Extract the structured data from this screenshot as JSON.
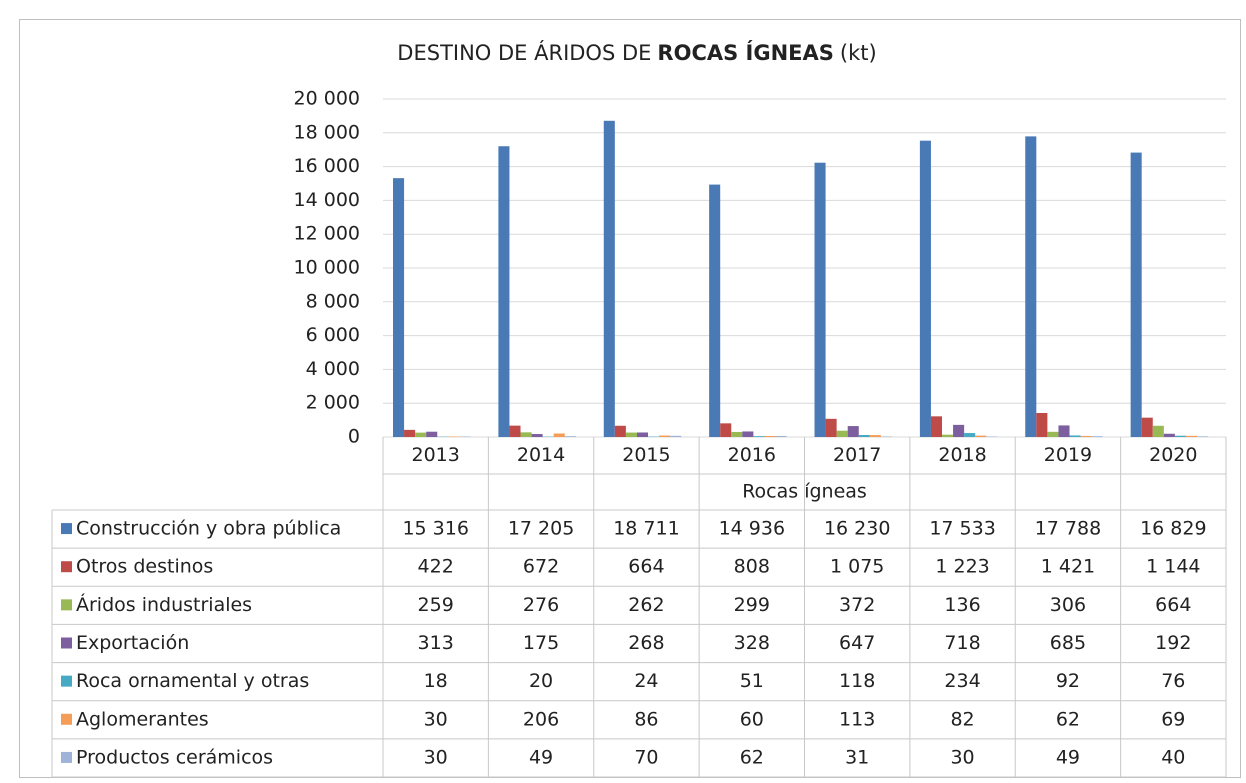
{
  "chart_data": {
    "type": "bar",
    "title": [
      "DESTINO DE ÁRIDOS DE",
      "ROCAS ÍGNEAS",
      "(kt)"
    ],
    "categories": [
      "2013",
      "2014",
      "2015",
      "2016",
      "2017",
      "2018",
      "2019",
      "2020"
    ],
    "group_label": "Rocas ígneas",
    "ylim": [
      0,
      20000
    ],
    "yticks": [
      0,
      {
        "value": 2000,
        "label": "2 000"
      },
      {
        "value": 4000,
        "label": "4 000"
      },
      {
        "value": 6000,
        "label": "6 000"
      },
      {
        "value": 8000,
        "label": "8 000"
      },
      {
        "value": 10000,
        "label": "10 000"
      },
      {
        "value": 12000,
        "label": "12 000"
      },
      {
        "value": 14000,
        "label": "14 000"
      },
      {
        "value": 16000,
        "label": "16 000"
      },
      {
        "value": 18000,
        "label": "18 000"
      },
      {
        "value": 20000,
        "label": "20 000"
      }
    ],
    "grid": true,
    "series": [
      {
        "name": "Construcción y obra pública",
        "color": "#4a7ab5",
        "values": [
          15316,
          17205,
          18711,
          14936,
          16230,
          17533,
          17788,
          16829
        ],
        "value_labels": [
          "15 316",
          "17 205",
          "18 711",
          "14 936",
          "16 230",
          "17 533",
          "17 788",
          "16 829"
        ]
      },
      {
        "name": "Otros destinos",
        "color": "#be4b48",
        "values": [
          422,
          672,
          664,
          808,
          1075,
          1223,
          1421,
          1144
        ],
        "value_labels": [
          "422",
          "672",
          "664",
          "808",
          "1 075",
          "1 223",
          "1 421",
          "1 144"
        ]
      },
      {
        "name": "Áridos industriales",
        "color": "#98b954",
        "values": [
          259,
          276,
          262,
          299,
          372,
          136,
          306,
          664
        ]
      },
      {
        "name": "Exportación",
        "color": "#7d5fa0",
        "values": [
          313,
          175,
          268,
          328,
          647,
          718,
          685,
          192
        ]
      },
      {
        "name": "Roca ornamental y otras",
        "color": "#46aac5",
        "values": [
          18,
          20,
          24,
          51,
          118,
          234,
          92,
          76
        ]
      },
      {
        "name": "Aglomerantes",
        "color": "#f59d56",
        "values": [
          30,
          206,
          86,
          60,
          113,
          82,
          62,
          69
        ]
      },
      {
        "name": "Productos cerámicos",
        "color": "#9db4d8",
        "values": [
          30,
          49,
          70,
          62,
          31,
          30,
          49,
          40
        ]
      }
    ]
  }
}
